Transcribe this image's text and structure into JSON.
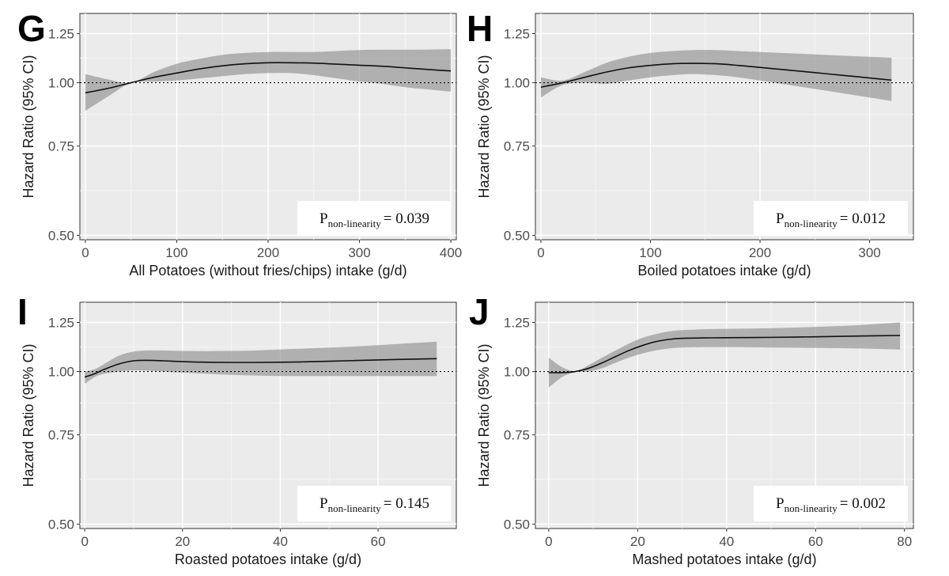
{
  "chart_data": [
    {
      "panel": "G",
      "type": "line",
      "xlabel": "All Potatoes (without fries/chips) intake (g/d)",
      "ylabel": "Hazard Ratio (95% CI)",
      "xlim": [
        -6,
        406
      ],
      "ylim": [
        0.49,
        1.37
      ],
      "y_scale": "log",
      "x_ticks": [
        0,
        100,
        200,
        300,
        400
      ],
      "y_ticks": [
        0.5,
        0.75,
        1.0,
        1.25
      ],
      "y_tick_labels": [
        "0.50",
        "0.75",
        "1.00",
        "1.25"
      ],
      "reference_line": 1.0,
      "grid": true,
      "legend": "none",
      "p_label": "P",
      "p_sub": "non-linearity",
      "p_value": "= 0.039",
      "x": [
        0,
        25,
        50,
        75,
        100,
        125,
        150,
        175,
        200,
        225,
        250,
        275,
        300,
        325,
        350,
        375,
        400
      ],
      "y": [
        0.955,
        0.975,
        1.0,
        1.025,
        1.045,
        1.065,
        1.08,
        1.09,
        1.095,
        1.095,
        1.093,
        1.088,
        1.083,
        1.078,
        1.07,
        1.062,
        1.055
      ],
      "lower": [
        0.88,
        0.94,
        1.0,
        1.005,
        1.01,
        1.02,
        1.03,
        1.04,
        1.045,
        1.045,
        1.035,
        1.02,
        1.005,
        0.995,
        0.98,
        0.97,
        0.96
      ],
      "upper": [
        1.04,
        1.015,
        1.0,
        1.05,
        1.09,
        1.115,
        1.135,
        1.145,
        1.15,
        1.15,
        1.15,
        1.155,
        1.16,
        1.162,
        1.162,
        1.163,
        1.165
      ]
    },
    {
      "panel": "H",
      "type": "line",
      "xlabel": "Boiled potatoes intake (g/d)",
      "ylabel": "Hazard Ratio (95% CI)",
      "xlim": [
        -5,
        340
      ],
      "ylim": [
        0.49,
        1.37
      ],
      "y_scale": "log",
      "x_ticks": [
        0,
        100,
        200,
        300
      ],
      "y_ticks": [
        0.5,
        0.75,
        1.0,
        1.25
      ],
      "y_tick_labels": [
        "0.50",
        "0.75",
        "1.00",
        "1.25"
      ],
      "reference_line": 1.0,
      "grid": true,
      "legend": "none",
      "p_label": "P",
      "p_sub": "non-linearity",
      "p_value": "= 0.012",
      "x": [
        0,
        20,
        40,
        60,
        80,
        100,
        120,
        140,
        160,
        180,
        200,
        220,
        240,
        260,
        280,
        300,
        320
      ],
      "y": [
        0.98,
        1.0,
        1.025,
        1.05,
        1.07,
        1.082,
        1.09,
        1.092,
        1.09,
        1.082,
        1.072,
        1.062,
        1.052,
        1.042,
        1.032,
        1.022,
        1.012
      ],
      "lower": [
        0.935,
        0.99,
        1.0,
        0.995,
        1.01,
        1.025,
        1.035,
        1.04,
        1.035,
        1.025,
        1.01,
        0.995,
        0.98,
        0.965,
        0.95,
        0.935,
        0.92
      ],
      "upper": [
        1.025,
        1.01,
        1.05,
        1.095,
        1.125,
        1.145,
        1.155,
        1.16,
        1.16,
        1.155,
        1.15,
        1.145,
        1.14,
        1.135,
        1.13,
        1.125,
        1.12
      ]
    },
    {
      "panel": "I",
      "type": "line",
      "xlabel": "Roasted potatoes intake (g/d)",
      "ylabel": "Hazard Ratio (95% CI)",
      "xlim": [
        -1,
        76
      ],
      "ylim": [
        0.49,
        1.37
      ],
      "y_scale": "log",
      "x_ticks": [
        0,
        20,
        40,
        60
      ],
      "y_ticks": [
        0.5,
        0.75,
        1.0,
        1.25
      ],
      "y_tick_labels": [
        "0.50",
        "0.75",
        "1.00",
        "1.25"
      ],
      "reference_line": 1.0,
      "grid": true,
      "legend": "none",
      "p_label": "P",
      "p_sub": "non-linearity",
      "p_value": "= 0.145",
      "x": [
        0,
        2,
        4,
        7,
        10,
        13,
        16,
        20,
        25,
        30,
        35,
        40,
        45,
        50,
        55,
        60,
        65,
        72
      ],
      "y": [
        0.975,
        0.99,
        1.01,
        1.035,
        1.05,
        1.052,
        1.05,
        1.046,
        1.043,
        1.042,
        1.042,
        1.043,
        1.045,
        1.048,
        1.051,
        1.054,
        1.057,
        1.06
      ],
      "lower": [
        0.945,
        0.975,
        0.99,
        1.0,
        1.005,
        1.004,
        1.0,
        0.995,
        0.99,
        0.985,
        0.982,
        0.98,
        0.98,
        0.98,
        0.98,
        0.98,
        0.98,
        0.98
      ],
      "upper": [
        1.0,
        1.01,
        1.035,
        1.075,
        1.095,
        1.1,
        1.1,
        1.098,
        1.097,
        1.098,
        1.1,
        1.105,
        1.11,
        1.115,
        1.12,
        1.127,
        1.135,
        1.145
      ]
    },
    {
      "panel": "J",
      "type": "line",
      "xlabel": "Mashed potatoes intake (g/d)",
      "ylabel": "Hazard Ratio (95% CI)",
      "xlim": [
        -3,
        82
      ],
      "ylim": [
        0.49,
        1.37
      ],
      "y_scale": "log",
      "x_ticks": [
        0,
        20,
        40,
        60,
        80
      ],
      "y_ticks": [
        0.5,
        0.75,
        1.0,
        1.25
      ],
      "y_tick_labels": [
        "0.50",
        "0.75",
        "1.00",
        "1.25"
      ],
      "reference_line": 1.0,
      "grid": true,
      "legend": "none",
      "p_label": "P",
      "p_sub": "non-linearity",
      "p_value": "= 0.002",
      "x": [
        0,
        3,
        6,
        9,
        12,
        15,
        18,
        21,
        24,
        27,
        30,
        35,
        40,
        50,
        60,
        70,
        79
      ],
      "y": [
        0.995,
        0.995,
        1.0,
        1.015,
        1.04,
        1.07,
        1.1,
        1.125,
        1.145,
        1.157,
        1.163,
        1.165,
        1.166,
        1.168,
        1.171,
        1.175,
        1.178
      ],
      "lower": [
        0.93,
        0.975,
        0.998,
        1.0,
        1.015,
        1.04,
        1.065,
        1.085,
        1.1,
        1.11,
        1.115,
        1.117,
        1.117,
        1.115,
        1.113,
        1.11,
        1.105
      ],
      "upper": [
        1.065,
        1.02,
        1.002,
        1.03,
        1.065,
        1.1,
        1.135,
        1.165,
        1.185,
        1.2,
        1.207,
        1.212,
        1.214,
        1.218,
        1.225,
        1.235,
        1.25
      ]
    }
  ]
}
